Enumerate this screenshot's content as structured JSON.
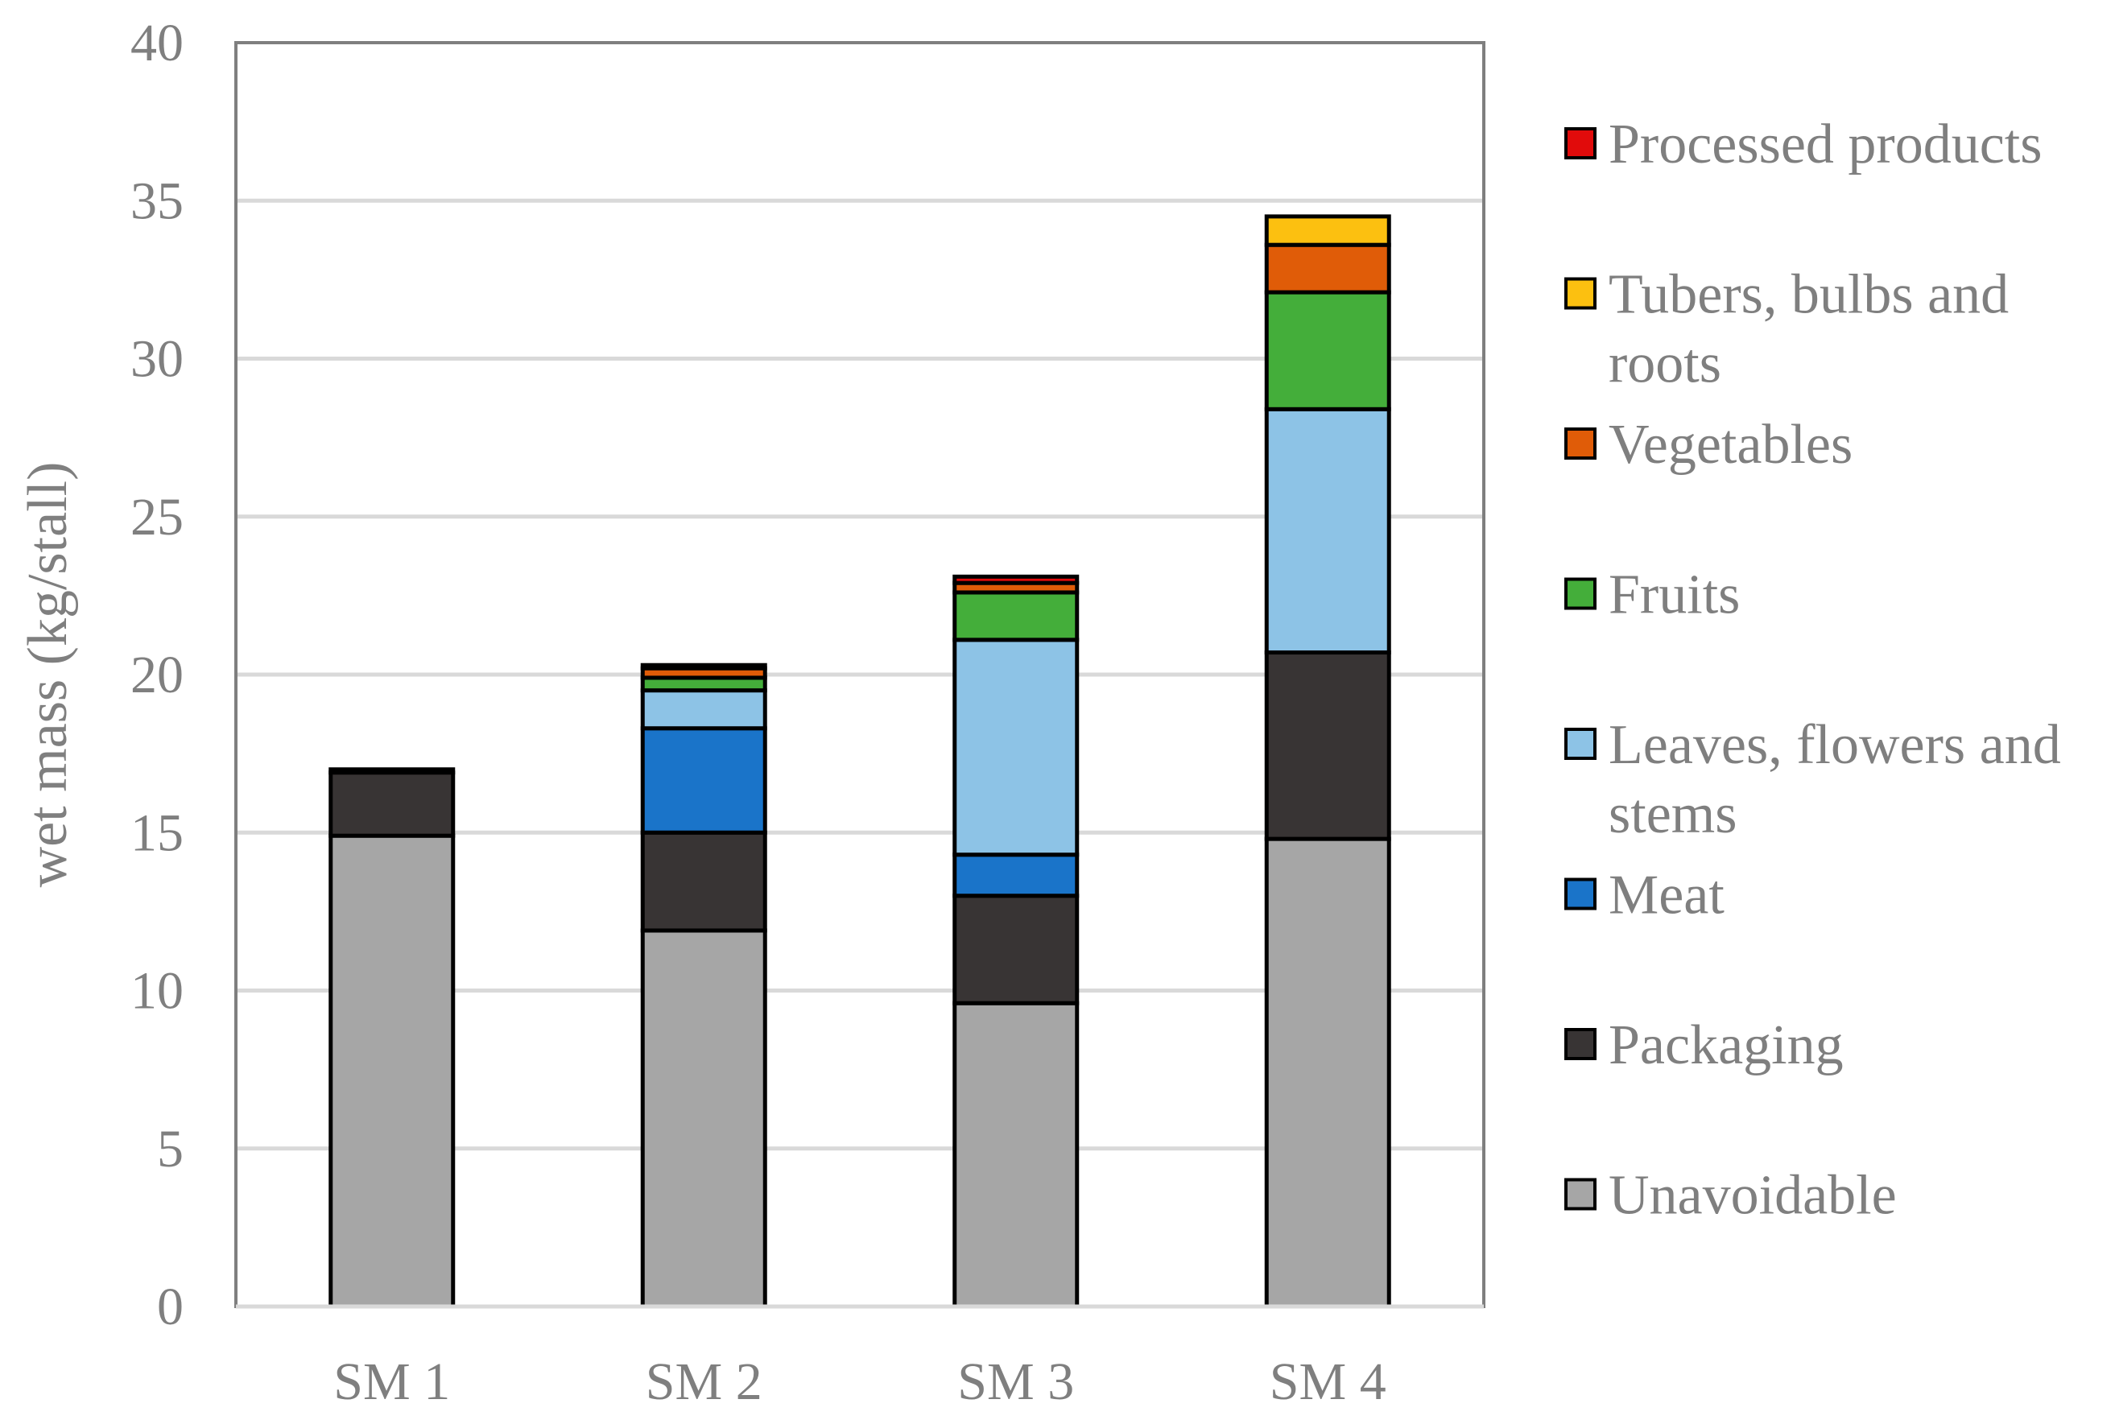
{
  "chart_data": {
    "type": "bar",
    "stacked": true,
    "title": "",
    "xlabel": "",
    "ylabel": "wet mass (kg/stall)",
    "ylim": [
      0,
      40
    ],
    "yticks": [
      0,
      5,
      10,
      15,
      20,
      25,
      30,
      35,
      40
    ],
    "grid": true,
    "legend_position": "right",
    "categories": [
      "SM 1",
      "SM 2",
      "SM 3",
      "SM 4"
    ],
    "series": [
      {
        "name": "Unavoidable",
        "color": "#a6a6a6",
        "values": [
          14.9,
          11.9,
          9.6,
          14.8
        ]
      },
      {
        "name": "Packaging",
        "color": "#383434",
        "values": [
          2.0,
          3.1,
          3.4,
          5.9
        ]
      },
      {
        "name": "Meat",
        "color": "#1a74c9",
        "values": [
          0,
          3.3,
          1.3,
          0
        ]
      },
      {
        "name": "Leaves, flowers and stems",
        "color": "#8dc3e6",
        "values": [
          0,
          1.2,
          6.8,
          7.7
        ]
      },
      {
        "name": "Fruits",
        "color": "#44ae3a",
        "values": [
          0,
          0.4,
          1.5,
          3.7
        ]
      },
      {
        "name": "Vegetables",
        "color": "#e05c08",
        "values": [
          0,
          0.3,
          0.3,
          1.5
        ]
      },
      {
        "name": "Tubers, bulbs and roots",
        "color": "#fcc010",
        "values": [
          0,
          0,
          0,
          0.9
        ]
      },
      {
        "name": "Processed products",
        "color": "#e10b0b",
        "values": [
          0.1,
          0.1,
          0.2,
          0
        ]
      }
    ],
    "legend_order": [
      {
        "lines": [
          "Processed products"
        ],
        "color": "#e10b0b"
      },
      {
        "lines": [
          "Tubers, bulbs and",
          "roots"
        ],
        "color": "#fcc010"
      },
      {
        "lines": [
          "Vegetables"
        ],
        "color": "#e05c08"
      },
      {
        "lines": [
          "Fruits"
        ],
        "color": "#44ae3a"
      },
      {
        "lines": [
          "Leaves, flowers and",
          "stems"
        ],
        "color": "#8dc3e6"
      },
      {
        "lines": [
          "Meat"
        ],
        "color": "#1a74c9"
      },
      {
        "lines": [
          "Packaging"
        ],
        "color": "#383434"
      },
      {
        "lines": [
          "Unavoidable"
        ],
        "color": "#a6a6a6"
      }
    ]
  }
}
